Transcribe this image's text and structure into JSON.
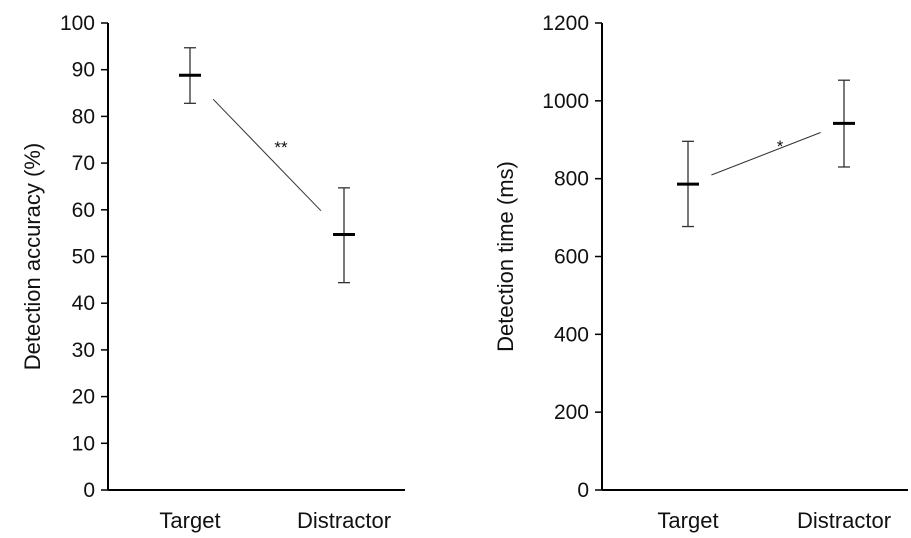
{
  "chart_data": [
    {
      "type": "errorbar",
      "categories": [
        "Target",
        "Distractor"
      ],
      "values": [
        88.8,
        54.7
      ],
      "error_low": [
        82.8,
        44.4
      ],
      "error_high": [
        94.7,
        64.7
      ],
      "ylabel": "Detection accuracy (%)",
      "ylim": [
        0,
        100
      ],
      "yticks": [
        0,
        10,
        20,
        30,
        40,
        50,
        60,
        70,
        80,
        90,
        100
      ],
      "significance": "**",
      "grid": false
    },
    {
      "type": "errorbar",
      "categories": [
        "Target",
        "Distractor"
      ],
      "values": [
        786,
        942
      ],
      "error_low": [
        677,
        830
      ],
      "error_high": [
        896,
        1053
      ],
      "ylabel": "Detection time (ms)",
      "ylim": [
        0,
        1200
      ],
      "yticks": [
        0,
        200,
        400,
        600,
        800,
        1000,
        1200
      ],
      "significance": "*",
      "grid": false
    }
  ]
}
